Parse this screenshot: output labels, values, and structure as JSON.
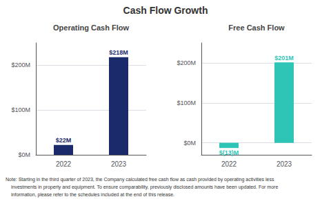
{
  "title": "Cash Flow Growth",
  "annotations": [
    "Note: Starting in the third quarter of 2023, the Company calculated free cash flow as cash provided by operating activities less",
    "investments in property and equipment. To ensure comparability, previously disclosed amounts have been updated. For more",
    "information, please refer to the schedules included at the end of this release."
  ],
  "chart_data": [
    {
      "type": "bar",
      "title": "Operating Cash Flow",
      "categories": [
        "2022",
        "2023"
      ],
      "values": [
        22,
        218
      ],
      "value_labels": [
        "$22M",
        "$218M"
      ],
      "color": "#1B2A6B",
      "data_labels": true,
      "grid": true,
      "ylim": [
        0,
        250
      ],
      "yticks": [
        {
          "value": 0,
          "label": "$0M"
        },
        {
          "value": 100,
          "label": "$100M"
        },
        {
          "value": 200,
          "label": "$200M"
        }
      ]
    },
    {
      "type": "bar",
      "title": "Free Cash Flow",
      "categories": [
        "2022",
        "2023"
      ],
      "values": [
        -13,
        201
      ],
      "value_labels": [
        "$(13)M",
        "$201M"
      ],
      "color": "#2EC4B6",
      "data_labels": true,
      "grid": true,
      "ylim": [
        -30,
        250
      ],
      "yticks": [
        {
          "value": 0,
          "label": "$0M"
        },
        {
          "value": 100,
          "label": "$100M"
        },
        {
          "value": 200,
          "label": "$200M"
        }
      ]
    }
  ]
}
